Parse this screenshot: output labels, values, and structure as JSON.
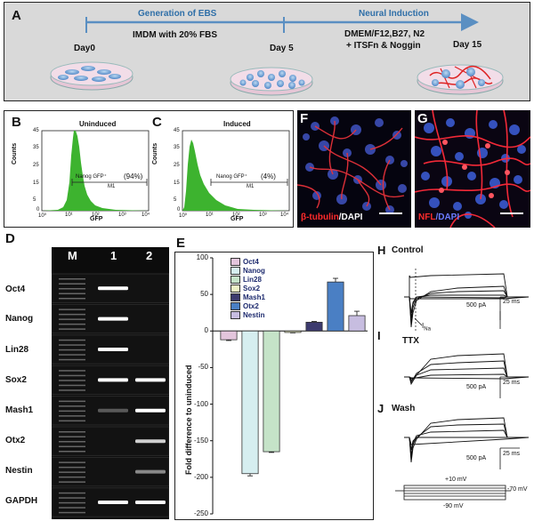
{
  "panelA": {
    "letter": "A",
    "stage1_title": "Generation of EBS",
    "stage1_medium": "IMDM with 20% FBS",
    "stage2_title": "Neural Induction",
    "stage2_medium_line1": "DMEM/F12,B27, N2",
    "stage2_medium_line2": "+ ITSFn & Noggin",
    "day0": "Day0",
    "day5": "Day 5",
    "day15": "Day 15"
  },
  "panelB": {
    "letter": "B",
    "title": "Uninduced",
    "gate_label": "Nanog GFP⁺",
    "gate_pct": "(94%)",
    "gate_name": "M1",
    "xlabel": "GFP",
    "ylabel": "Counts",
    "percent": 94
  },
  "panelC": {
    "letter": "C",
    "title": "Induced",
    "gate_label": "Nanog GFP⁺",
    "gate_pct": "(4%)",
    "gate_name": "M1",
    "xlabel": "GFP",
    "ylabel": "Counts",
    "percent": 4
  },
  "flow_axis": {
    "y_ticks": [
      "45",
      "40",
      "35",
      "30",
      "25",
      "20",
      "15",
      "10",
      "5",
      "0"
    ],
    "x_ticks": [
      "10⁰",
      "10¹",
      "10²",
      "10³",
      "10⁴"
    ]
  },
  "panelF": {
    "letter": "F",
    "caption_a": "β-tubulin",
    "caption_b": "/DAPI"
  },
  "panelG": {
    "letter": "G",
    "caption_a": "NFL",
    "caption_b": "/DAPI"
  },
  "panelD": {
    "letter": "D",
    "lanes": [
      "M",
      "1",
      "2"
    ],
    "genes": [
      {
        "name": "Oct4",
        "lane1": 1,
        "lane2": 0
      },
      {
        "name": "Nanog",
        "lane1": 1,
        "lane2": 0
      },
      {
        "name": "Lin28",
        "lane1": 1,
        "lane2": 0
      },
      {
        "name": "Sox2",
        "lane1": 1,
        "lane2": 1
      },
      {
        "name": "Mash1",
        "lane1": 0.3,
        "lane2": 1
      },
      {
        "name": "Otx2",
        "lane1": 0,
        "lane2": 0.8
      },
      {
        "name": "Nestin",
        "lane1": 0,
        "lane2": 0.5
      },
      {
        "name": "GAPDH",
        "lane1": 1,
        "lane2": 1
      }
    ]
  },
  "panelE": {
    "letter": "E"
  },
  "chart_data": {
    "type": "bar",
    "title": "",
    "xlabel": "",
    "ylabel": "Fold difference to uninduced",
    "categories": [
      "Oct4",
      "Nanog",
      "Lin28",
      "Sox2",
      "Mash1",
      "Otx2",
      "Nestin"
    ],
    "values": [
      -12,
      -195,
      -165,
      -2,
      12,
      67,
      21
    ],
    "errors": [
      1,
      3,
      1,
      0.5,
      1,
      5,
      6
    ],
    "colors": [
      "#e3c5dc",
      "#d6eef0",
      "#c5e3c8",
      "#eef2c6",
      "#3c3a6e",
      "#4a7fc4",
      "#c7bde0"
    ],
    "yticks": [
      100,
      50,
      0,
      -50,
      -100,
      -150,
      -200,
      -250
    ],
    "ylim": [
      -250,
      100
    ],
    "legend_position": "top",
    "grid": false
  },
  "panelH": {
    "letter_h": "H",
    "label_h": "Control",
    "letter_i": "I",
    "label_i": "TTX",
    "letter_j": "J",
    "label_j": "Wash",
    "ina_label": "I",
    "ina_sub": "Na",
    "scale_current": "500 pA",
    "scale_time": "25 ms",
    "protocol_top": "+10 mV",
    "protocol_right": "-70 mV",
    "protocol_bottom": "-90 mV"
  }
}
